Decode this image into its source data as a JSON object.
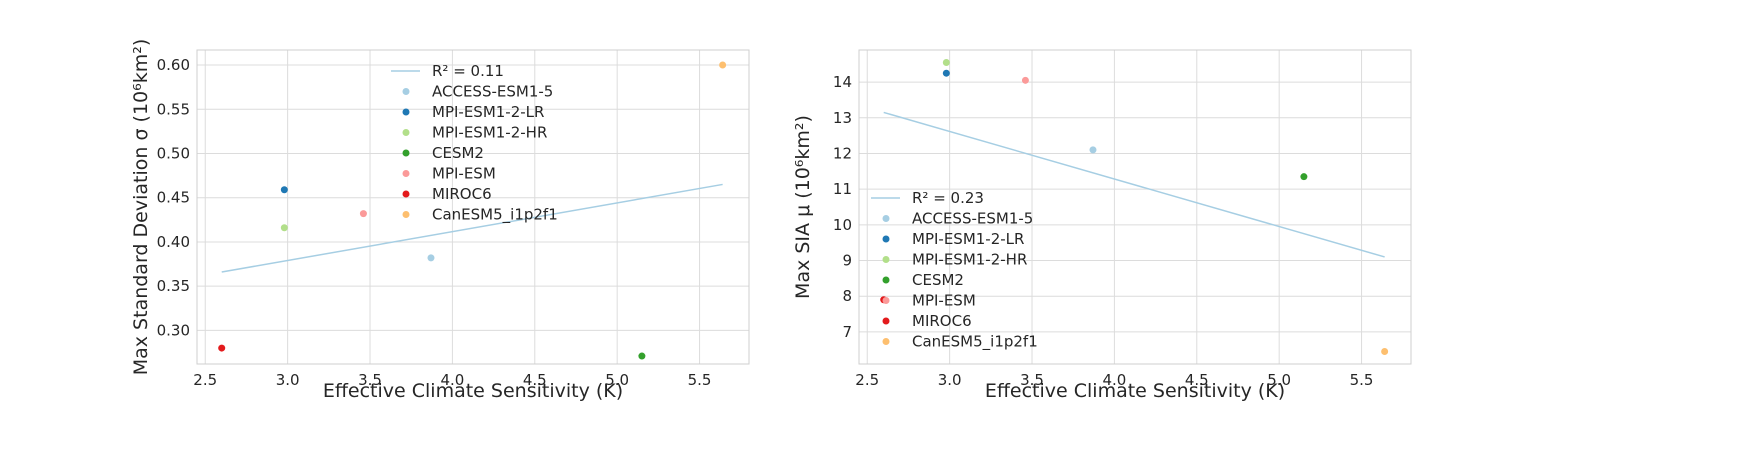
{
  "chart_data": [
    {
      "type": "scatter",
      "xlabel": "Effective Climate Sensitivity (K)",
      "ylabel": "Max Standard Deviation σ (10⁶km²)",
      "xlim": [
        2.45,
        5.8
      ],
      "ylim": [
        0.262,
        0.617
      ],
      "xticks": [
        "2.5",
        "3.0",
        "3.5",
        "4.0",
        "4.5",
        "5.0",
        "5.5"
      ],
      "yticks": [
        "0.30",
        "0.35",
        "0.40",
        "0.45",
        "0.50",
        "0.55",
        "0.60"
      ],
      "grid": true,
      "legend_position": "upper-center",
      "fit": {
        "label": "R² = 0.11",
        "x": [
          2.6,
          5.64
        ],
        "y": [
          0.366,
          0.465
        ],
        "color": "#a6cee3"
      },
      "series": [
        {
          "name": "ACCESS-ESM1-5",
          "color": "#a6cee3",
          "x": 3.87,
          "y": 0.382
        },
        {
          "name": "MPI-ESM1-2-LR",
          "color": "#1f78b4",
          "x": 2.98,
          "y": 0.459
        },
        {
          "name": "MPI-ESM1-2-HR",
          "color": "#b2df8a",
          "x": 2.98,
          "y": 0.416
        },
        {
          "name": "CESM2",
          "color": "#33a02c",
          "x": 5.15,
          "y": 0.271
        },
        {
          "name": "MPI-ESM",
          "color": "#fb9a99",
          "x": 3.46,
          "y": 0.432
        },
        {
          "name": "MIROC6",
          "color": "#e31a1c",
          "x": 2.6,
          "y": 0.28
        },
        {
          "name": "CanESM5_i1p2f1",
          "color": "#fdbf6f",
          "x": 5.64,
          "y": 0.6
        }
      ]
    },
    {
      "type": "scatter",
      "xlabel": "Effective Climate Sensitivity (K)",
      "ylabel": "Max SIA μ (10⁶km²)",
      "xlim": [
        2.45,
        5.8
      ],
      "ylim": [
        6.1,
        14.9
      ],
      "xticks": [
        "2.5",
        "3.0",
        "3.5",
        "4.0",
        "4.5",
        "5.0",
        "5.5"
      ],
      "yticks": [
        "7",
        "8",
        "9",
        "10",
        "11",
        "12",
        "13",
        "14"
      ],
      "grid": true,
      "legend_position": "lower-left",
      "fit": {
        "label": "R² = 0.23",
        "x": [
          2.6,
          5.64
        ],
        "y": [
          13.15,
          9.1
        ],
        "color": "#a6cee3"
      },
      "series": [
        {
          "name": "ACCESS-ESM1-5",
          "color": "#a6cee3",
          "x": 3.87,
          "y": 12.1
        },
        {
          "name": "MPI-ESM1-2-LR",
          "color": "#1f78b4",
          "x": 2.98,
          "y": 14.25
        },
        {
          "name": "MPI-ESM1-2-HR",
          "color": "#b2df8a",
          "x": 2.98,
          "y": 14.55
        },
        {
          "name": "CESM2",
          "color": "#33a02c",
          "x": 5.15,
          "y": 11.35
        },
        {
          "name": "MPI-ESM",
          "color": "#fb9a99",
          "x": 3.46,
          "y": 14.05
        },
        {
          "name": "MIROC6",
          "color": "#e31a1c",
          "x": 2.6,
          "y": 7.9
        },
        {
          "name": "CanESM5_i1p2f1",
          "color": "#fdbf6f",
          "x": 5.64,
          "y": 6.45
        }
      ]
    }
  ]
}
